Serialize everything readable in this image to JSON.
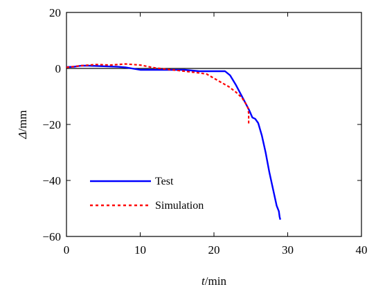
{
  "chart_data": {
    "type": "line",
    "title": "",
    "xlabel": "t/min",
    "xlabel_italic": "t",
    "xlabel_unit": "/min",
    "ylabel": "Δ/mm",
    "ylabel_italic": "Δ",
    "ylabel_unit": "/mm",
    "xlim": [
      0,
      40
    ],
    "ylim": [
      -60,
      20
    ],
    "xticks": [
      0,
      10,
      20,
      30,
      40
    ],
    "yticks": [
      20,
      0,
      -20,
      -40,
      -60
    ],
    "xtick_labels": [
      "0",
      "10",
      "20",
      "30",
      "40"
    ],
    "ytick_labels": [
      "20",
      "0",
      "−20",
      "−40",
      "−60"
    ],
    "grid": false,
    "zero_line": true,
    "legend_position": "bottom-left",
    "series": [
      {
        "name": "Test",
        "color": "#0000ff",
        "style": "solid",
        "points": [
          [
            0,
            0.5
          ],
          [
            1,
            0.6
          ],
          [
            2,
            1.0
          ],
          [
            3,
            1.0
          ],
          [
            5,
            0.8
          ],
          [
            7,
            0.6
          ],
          [
            8,
            0.4
          ],
          [
            10,
            -0.5
          ],
          [
            12,
            -0.5
          ],
          [
            14,
            -0.5
          ],
          [
            16,
            -0.5
          ],
          [
            18,
            -1.0
          ],
          [
            20,
            -1.0
          ],
          [
            21.5,
            -1.0
          ],
          [
            22.2,
            -2.5
          ],
          [
            23,
            -6
          ],
          [
            24,
            -11
          ],
          [
            24.8,
            -15
          ],
          [
            25.2,
            -17.5
          ],
          [
            25.6,
            -18
          ],
          [
            26,
            -19.5
          ],
          [
            26.5,
            -24
          ],
          [
            27,
            -30
          ],
          [
            27.5,
            -37
          ],
          [
            28,
            -43
          ],
          [
            28.5,
            -49
          ],
          [
            28.8,
            -51
          ],
          [
            28.9,
            -53
          ],
          [
            29,
            -54
          ]
        ]
      },
      {
        "name": "Simulation",
        "color": "#ff0000",
        "style": "dotted",
        "points": [
          [
            0,
            0.4
          ],
          [
            2,
            1.0
          ],
          [
            4,
            1.4
          ],
          [
            6,
            1.2
          ],
          [
            8,
            1.6
          ],
          [
            10,
            1.2
          ],
          [
            12,
            0.2
          ],
          [
            14,
            -0.4
          ],
          [
            16,
            -1.0
          ],
          [
            18,
            -1.6
          ],
          [
            19,
            -2.0
          ],
          [
            20,
            -3.5
          ],
          [
            21,
            -5
          ],
          [
            22,
            -6.5
          ],
          [
            23,
            -8.5
          ],
          [
            23.8,
            -10.5
          ],
          [
            24.3,
            -12.5
          ],
          [
            24.6,
            -14
          ],
          [
            24.7,
            -16
          ],
          [
            24.7,
            -18
          ],
          [
            24.7,
            -20
          ]
        ]
      }
    ]
  }
}
